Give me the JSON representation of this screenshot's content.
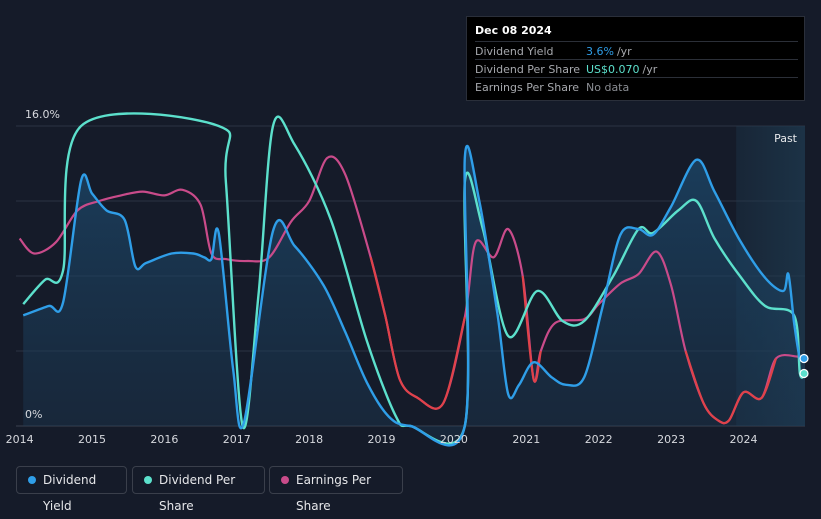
{
  "tooltip": {
    "date": "Dec 08 2024",
    "rows": [
      {
        "label": "Dividend Yield",
        "value": "3.6%",
        "unit": "/yr",
        "color": "#2f9ee8"
      },
      {
        "label": "Dividend Per Share",
        "value": "US$0.070",
        "unit": "/yr",
        "color": "#5ce0cc"
      },
      {
        "label": "Earnings Per Share",
        "value": "No data",
        "unit": "",
        "color": "#8a8d93"
      }
    ]
  },
  "legend": [
    {
      "label": "Dividend Yield",
      "color": "#2f9ee8"
    },
    {
      "label": "Dividend Per Share",
      "color": "#5ce0cc"
    },
    {
      "label": "Earnings Per Share",
      "color": "#c94b8a"
    }
  ],
  "chart_data": {
    "type": "line",
    "title": "",
    "xlabel": "",
    "ylabel": "",
    "ylim": [
      0,
      16
    ],
    "y_tick_labels": [
      "16.0%",
      "0%"
    ],
    "x_ticks": [
      2014,
      2015,
      2016,
      2017,
      2018,
      2019,
      2020,
      2021,
      2022,
      2023,
      2024
    ],
    "xlim": [
      2013.95,
      2024.85
    ],
    "past_label": "Past",
    "past_start": 2023.9,
    "colors": {
      "yield": "#2f9ee8",
      "dps": "#5ce0cc",
      "eps_pos": "#c94b8a",
      "eps_neg": "#e0424a",
      "grid": "#2c3342"
    },
    "series": [
      {
        "name": "Dividend Yield",
        "key": "yield",
        "values": [
          [
            2014.05,
            5.9
          ],
          [
            2014.4,
            6.4
          ],
          [
            2014.6,
            6.6
          ],
          [
            2014.85,
            13.1
          ],
          [
            2015.0,
            12.4
          ],
          [
            2015.2,
            11.5
          ],
          [
            2015.45,
            11.0
          ],
          [
            2015.6,
            8.5
          ],
          [
            2015.75,
            8.7
          ],
          [
            2016.1,
            9.2
          ],
          [
            2016.4,
            9.2
          ],
          [
            2016.55,
            9.0
          ],
          [
            2016.65,
            8.9
          ],
          [
            2016.75,
            10.3
          ],
          [
            2016.95,
            3.0
          ],
          [
            2017.1,
            0.2
          ],
          [
            2017.5,
            10.4
          ],
          [
            2017.8,
            9.6
          ],
          [
            2018.2,
            7.5
          ],
          [
            2018.5,
            5.0
          ],
          [
            2018.8,
            2.3
          ],
          [
            2019.1,
            0.5
          ],
          [
            2019.4,
            0.0
          ],
          [
            2020.15,
            0.0
          ],
          [
            2020.15,
            14.3
          ],
          [
            2020.35,
            12.0
          ],
          [
            2020.6,
            6.0
          ],
          [
            2020.75,
            1.7
          ],
          [
            2020.9,
            2.2
          ],
          [
            2021.1,
            3.4
          ],
          [
            2021.35,
            2.6
          ],
          [
            2021.55,
            2.2
          ],
          [
            2021.8,
            2.6
          ],
          [
            2022.05,
            6.3
          ],
          [
            2022.3,
            10.2
          ],
          [
            2022.55,
            10.5
          ],
          [
            2022.75,
            10.2
          ],
          [
            2023.0,
            11.7
          ],
          [
            2023.35,
            14.2
          ],
          [
            2023.6,
            12.5
          ],
          [
            2023.95,
            9.9
          ],
          [
            2024.3,
            7.9
          ],
          [
            2024.55,
            7.2
          ],
          [
            2024.62,
            8.1
          ],
          [
            2024.7,
            5.5
          ],
          [
            2024.78,
            3.6
          ],
          [
            2024.85,
            3.6
          ]
        ]
      },
      {
        "name": "Dividend Per Share",
        "key": "dps",
        "values": [
          [
            2014.05,
            6.5
          ],
          [
            2014.35,
            7.8
          ],
          [
            2014.6,
            8.3
          ],
          [
            2014.85,
            16.0
          ],
          [
            2016.75,
            16.0
          ],
          [
            2016.85,
            13.0
          ],
          [
            2017.08,
            0.0
          ],
          [
            2017.3,
            7.0
          ],
          [
            2017.5,
            16.0
          ],
          [
            2017.8,
            15.0
          ],
          [
            2018.3,
            11.0
          ],
          [
            2018.8,
            4.5
          ],
          [
            2019.2,
            0.5
          ],
          [
            2019.4,
            0.0
          ],
          [
            2020.15,
            0.0
          ],
          [
            2020.15,
            13.0
          ],
          [
            2020.4,
            10.5
          ],
          [
            2020.75,
            4.8
          ],
          [
            2021.15,
            7.2
          ],
          [
            2021.5,
            5.6
          ],
          [
            2021.8,
            5.6
          ],
          [
            2022.2,
            8.0
          ],
          [
            2022.55,
            10.5
          ],
          [
            2022.75,
            10.3
          ],
          [
            2023.1,
            11.5
          ],
          [
            2023.35,
            12.0
          ],
          [
            2023.6,
            10.0
          ],
          [
            2023.95,
            8.0
          ],
          [
            2024.3,
            6.4
          ],
          [
            2024.7,
            5.9
          ],
          [
            2024.78,
            2.8
          ],
          [
            2024.85,
            2.8
          ]
        ]
      },
      {
        "name": "Earnings Per Share",
        "key": "eps",
        "values": [
          [
            2014.0,
            10.0
          ],
          [
            2014.2,
            9.2
          ],
          [
            2014.5,
            9.8
          ],
          [
            2014.8,
            11.5
          ],
          [
            2015.1,
            12.0
          ],
          [
            2015.4,
            12.3
          ],
          [
            2015.7,
            12.5
          ],
          [
            2016.0,
            12.3
          ],
          [
            2016.25,
            12.6
          ],
          [
            2016.5,
            11.8
          ],
          [
            2016.65,
            9.2
          ],
          [
            2016.85,
            8.9
          ],
          [
            2017.15,
            8.8
          ],
          [
            2017.45,
            9.0
          ],
          [
            2017.75,
            10.9
          ],
          [
            2018.0,
            12.0
          ],
          [
            2018.25,
            14.3
          ],
          [
            2018.5,
            13.4
          ],
          [
            2018.85,
            9.0
          ],
          [
            2019.05,
            5.9
          ],
          [
            2019.25,
            2.5
          ],
          [
            2019.5,
            1.5
          ],
          [
            2019.85,
            1.2
          ],
          [
            2020.15,
            5.8
          ],
          [
            2020.3,
            9.8
          ],
          [
            2020.55,
            9.0
          ],
          [
            2020.75,
            10.5
          ],
          [
            2020.95,
            8.0
          ],
          [
            2021.1,
            2.5
          ],
          [
            2021.2,
            4.0
          ],
          [
            2021.4,
            5.5
          ],
          [
            2021.8,
            5.7
          ],
          [
            2022.0,
            6.5
          ],
          [
            2022.3,
            7.6
          ],
          [
            2022.55,
            8.1
          ],
          [
            2022.8,
            9.3
          ],
          [
            2023.0,
            7.5
          ],
          [
            2023.2,
            4.0
          ],
          [
            2023.45,
            1.2
          ],
          [
            2023.65,
            0.3
          ],
          [
            2023.8,
            0.3
          ],
          [
            2024.0,
            1.8
          ],
          [
            2024.25,
            1.5
          ],
          [
            2024.45,
            3.6
          ],
          [
            2024.75,
            3.7
          ]
        ]
      }
    ],
    "end_markers": [
      {
        "series": "yield",
        "value": 3.6
      },
      {
        "series": "dps",
        "value": 2.8
      }
    ]
  }
}
